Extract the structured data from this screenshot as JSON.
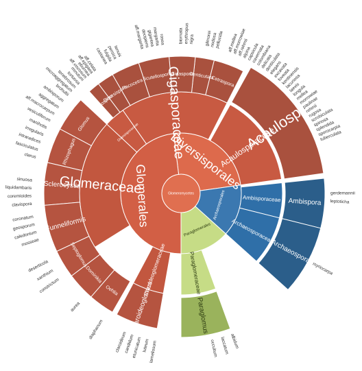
{
  "colors": {
    "glom": "#c0583f",
    "glom_center": "#e06f50",
    "div_center": "#e06f50",
    "ambi": "#2f6fa8",
    "ambi_dark": "#2b5e8a",
    "para": "#cbe08d",
    "para_dark": "#95ad57",
    "stroke": "#ffffff"
  },
  "chart_data": {
    "type": "sunburst",
    "root": {
      "name": "Glomeromycetes"
    },
    "orders": [
      {
        "name": "Diversisporales",
        "a0": -7,
        "a1": 82,
        "c": "#dd6a4c"
      },
      {
        "name": "Glomerales",
        "a0": 180,
        "a1": 353,
        "c": "#d25f45"
      },
      {
        "name": "Paraglomerales",
        "a0": 132,
        "a1": 180,
        "c": "#c6dc86"
      },
      {
        "name": "Archaeosporales",
        "a0": 82,
        "a1": 132,
        "c": "#3b78b0"
      }
    ],
    "families": [
      {
        "name": "Acaulosporaceae",
        "a0": 29,
        "a1": 82,
        "c": "#c85a42"
      },
      {
        "name": "Gigasporaceae",
        "a0": -35,
        "a1": 27,
        "c": "#c85a42"
      },
      {
        "name": "Diversisporaceae",
        "a0": -47,
        "a1": -35,
        "c": "#c85a42"
      },
      {
        "name": "Glomeraceae",
        "a0": 238,
        "a1": 313,
        "c": "#c2573f"
      },
      {
        "name": "Claroideoglomeraceae",
        "a0": 190,
        "a1": 208,
        "c": "#c2573f"
      },
      {
        "name": "Paraglomeraceae",
        "a0": 160,
        "a1": 180,
        "c": "#c6dc86"
      },
      {
        "name": "Ambisporaceae",
        "a0": 84,
        "a1": 104,
        "c": "#2f6fa8"
      },
      {
        "name": "Archaeosporaceae",
        "a0": 104,
        "a1": 132,
        "c": "#2f6fa8"
      }
    ],
    "genera": [
      {
        "name": "Acaulospora",
        "a0": 29,
        "a1": 82,
        "c": "#a9513e"
      },
      {
        "name": "Cetraspora",
        "a0": 14,
        "a1": 27,
        "c": "#a9513e"
      },
      {
        "name": "Denticutata",
        "a0": 6,
        "a1": 14,
        "c": "#a9513e"
      },
      {
        "name": "Gigaspora",
        "a0": -5,
        "a1": 6,
        "c": "#a9513e"
      },
      {
        "name": "Scutellospora",
        "a0": -18,
        "a1": -5,
        "c": "#a9513e"
      },
      {
        "name": "Racocetra",
        "a0": -30,
        "a1": -18,
        "c": "#a9513e"
      },
      {
        "name": "Diversispora",
        "a0": -37,
        "a1": -30,
        "c": "#a9513e"
      },
      {
        "name": "Otospora",
        "a0": -42,
        "a1": -37,
        "c": "#a9513e"
      },
      {
        "name": "Glomus",
        "a0": 298,
        "a1": 313,
        "c": "#b55440"
      },
      {
        "name": "Rhizophagus",
        "a0": 283,
        "a1": 298,
        "c": "#b55440"
      },
      {
        "name": "Sclerocystis",
        "a0": 265,
        "a1": 283,
        "c": "#b55440"
      },
      {
        "name": "Funneliformis",
        "a0": 245,
        "a1": 265,
        "c": "#b55440"
      },
      {
        "name": "Septoglomus",
        "a0": 233,
        "a1": 245,
        "c": "#b55440"
      },
      {
        "name": "Dominikia",
        "a0": 221,
        "a1": 233,
        "c": "#b55440"
      },
      {
        "name": "Oehlia",
        "a0": 210,
        "a1": 221,
        "c": "#b55440"
      },
      {
        "name": "Claroideoglomus",
        "a0": 190,
        "a1": 208,
        "c": "#b55440"
      },
      {
        "name": "Paraglomus",
        "a0": 160,
        "a1": 180,
        "c": "#9ab35c"
      },
      {
        "name": "Ambispora",
        "a0": 84,
        "a1": 104,
        "c": "#2b5e8a"
      },
      {
        "name": "Archaeospora",
        "a0": 104,
        "a1": 132,
        "c": "#2b5e8a"
      }
    ],
    "species": [
      {
        "text": "tortuosa",
        "a": -43
      },
      {
        "text": "minutum",
        "a": -41
      },
      {
        "text": "aff.viscosum",
        "a": -39.5
      },
      {
        "text": "eburnea",
        "a": -38
      },
      {
        "text": "aff.epigaea",
        "a": -36.5
      },
      {
        "text": "aff.celata",
        "a": -35
      },
      {
        "text": "castanea",
        "a": -30
      },
      {
        "text": "fulgida",
        "a": -28
      },
      {
        "text": "persica",
        "a": -26
      },
      {
        "text": "tenuis",
        "a": -24
      },
      {
        "text": "aff.margarita",
        "a": -15
      },
      {
        "text": "decipiens",
        "a": -13
      },
      {
        "text": "gigantea",
        "a": -11
      },
      {
        "text": "margarita",
        "a": -9
      },
      {
        "text": "rosea",
        "a": -7
      },
      {
        "text": "biornata",
        "a": 0
      },
      {
        "text": "erythropus",
        "a": 2
      },
      {
        "text": "nigra",
        "a": 4
      },
      {
        "text": "gilmorei",
        "a": 10
      },
      {
        "text": "nodosa",
        "a": 12
      },
      {
        "text": "pellucida",
        "a": 14
      },
      {
        "text": "aff.mellea",
        "a": 19
      },
      {
        "text": "aff.morrowiae",
        "a": 21
      },
      {
        "text": "aff.rehmii",
        "a": 23
      },
      {
        "text": "alpina",
        "a": 25
      },
      {
        "text": "capsicula",
        "a": 27
      },
      {
        "text": "cavernata",
        "a": 29
      },
      {
        "text": "colombiana",
        "a": 31
      },
      {
        "text": "delicata",
        "a": 33
      },
      {
        "text": "denticulata",
        "a": 35
      },
      {
        "text": "elegans",
        "a": 37
      },
      {
        "text": "excavata",
        "a": 39
      },
      {
        "text": "foveata",
        "a": 41
      },
      {
        "text": "kentinensis",
        "a": 43
      },
      {
        "text": "lacunosa",
        "a": 45
      },
      {
        "text": "laevis",
        "a": 47
      },
      {
        "text": "longula",
        "a": 49
      },
      {
        "text": "mellea",
        "a": 51
      },
      {
        "text": "morrowiae",
        "a": 53
      },
      {
        "text": "paulinae",
        "a": 55
      },
      {
        "text": "rehmii",
        "a": 57
      },
      {
        "text": "rugosa",
        "a": 59
      },
      {
        "text": "scrobiculata",
        "a": 61
      },
      {
        "text": "spinosa",
        "a": 63
      },
      {
        "text": "splendida",
        "a": 65
      },
      {
        "text": "sporocarpia",
        "a": 67
      },
      {
        "text": "tuberculata",
        "a": 69
      },
      {
        "text": "gerdemannii",
        "a": 90
      },
      {
        "text": "leptoticha",
        "a": 93
      },
      {
        "text": "myriocarpa",
        "a": 118
      },
      {
        "text": "albidum",
        "a": 160
      },
      {
        "text": "laccatum",
        "a": 164
      },
      {
        "text": "occultum",
        "a": 168
      },
      {
        "text": "lamellosum",
        "a": 190
      },
      {
        "text": "luteum",
        "a": 193
      },
      {
        "text": "etunicatum",
        "a": 196
      },
      {
        "text": "candidum",
        "a": 199
      },
      {
        "text": "claroideum",
        "a": 202
      },
      {
        "text": "diaphanum",
        "a": 212
      },
      {
        "text": "aurea",
        "a": 223
      },
      {
        "text": "constrictum",
        "a": 235
      },
      {
        "text": "xanthium",
        "a": 239
      },
      {
        "text": "deserticola",
        "a": 243
      },
      {
        "text": "mosseae",
        "a": 252
      },
      {
        "text": "caledonium",
        "a": 255
      },
      {
        "text": "geosporum",
        "a": 258
      },
      {
        "text": "coronatum",
        "a": 261
      },
      {
        "text": "clavispora",
        "a": 266
      },
      {
        "text": "coremioides",
        "a": 269
      },
      {
        "text": "liquidambaris",
        "a": 272
      },
      {
        "text": "sinuosa",
        "a": 275
      },
      {
        "text": "clarus",
        "a": 284
      },
      {
        "text": "fasciculatus",
        "a": 287
      },
      {
        "text": "intraradices",
        "a": 290
      },
      {
        "text": "irregularis",
        "a": 293
      },
      {
        "text": "manihotis",
        "a": 296
      },
      {
        "text": "vesiculiferum",
        "a": 299
      },
      {
        "text": "aff.macrocarpum",
        "a": 302
      },
      {
        "text": "aggregatum",
        "a": 305
      },
      {
        "text": "ambisporum",
        "a": 308
      },
      {
        "text": "brohultii",
        "a": 311
      },
      {
        "text": "microaggregatum",
        "a": 313
      },
      {
        "text": "tenebrosum",
        "a": 315
      }
    ]
  }
}
